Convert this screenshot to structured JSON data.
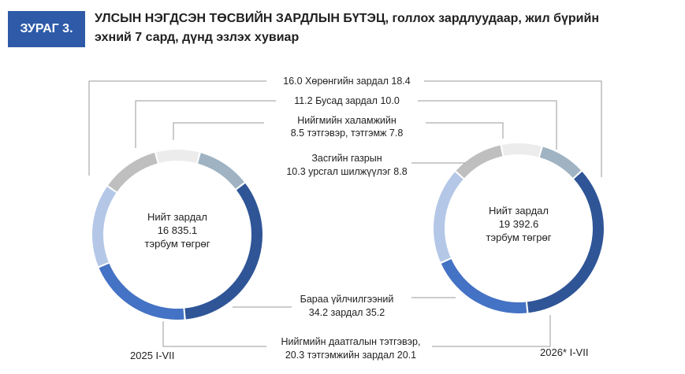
{
  "header": {
    "figure_label": "ЗУРАГ 3.",
    "title_line1": "УЛСЫН НЭГДСЭН ТӨСВИЙН ЗАРДЛЫН БҮТЭЦ, голлох зардлуудаар, жил бүрийн",
    "title_line2": "эхний 7 сард, дүнд эзлэх хувиар"
  },
  "colors": {
    "badge": "#2e5aa8",
    "goods_services": "#2f5597",
    "social_insurance": "#4472c4",
    "staff": "#b4c7e7",
    "other": "#bfbfbf",
    "welfare": "#ececec",
    "subsidies": "#9fb3c2"
  },
  "chart_data": {
    "type": "pie",
    "donut": true,
    "units": "%",
    "categories": [
      "Хөрөнгийн зардал",
      "Бусад зардал",
      "Нийгмийн халамжийн тэтгэвэр, тэтгэмж",
      "Засгийн газрын урсгал шилжүүлэг",
      "Бараа үйлчилгээний зардал",
      "Нийгмийн даатгалын тэтгэвэр, тэтгэмжийн зардал"
    ],
    "series": [
      {
        "name": "2025 I-VII",
        "total_line1": "Нийт зардал",
        "total_value": "16 835.1",
        "total_unit": "тэрбум төгрөг",
        "values": [
          16.0,
          11.2,
          8.5,
          10.3,
          34.2,
          20.3
        ]
      },
      {
        "name": "2026* I-VII",
        "total_line1": "Нийт зардал",
        "total_value": "19 392.6",
        "total_unit": "тэрбум төгрөг",
        "values": [
          18.4,
          10.0,
          7.8,
          8.8,
          35.2,
          20.1
        ]
      }
    ],
    "labels": [
      {
        "line1": "16.0 Хөрөнгийн зардал 18.4"
      },
      {
        "line1": "11.2  Бусад зардал 10.0"
      },
      {
        "line1": "Нийгмийн халамжийн",
        "line2": "8.5  тэтгэвэр, тэтгэмж  7.8"
      },
      {
        "line1": "Засгийн газрын",
        "line2": "10.3 урсгал шилжүүлэг 8.8"
      },
      {
        "line1": "Бараа үйлчилгээний",
        "line2": "34.2  зардал  35.2"
      },
      {
        "line1": "Нийгмийн даатгалын тэтгэвэр,",
        "line2": "20.3  тэтгэмжийн зардал  20.1"
      }
    ]
  }
}
